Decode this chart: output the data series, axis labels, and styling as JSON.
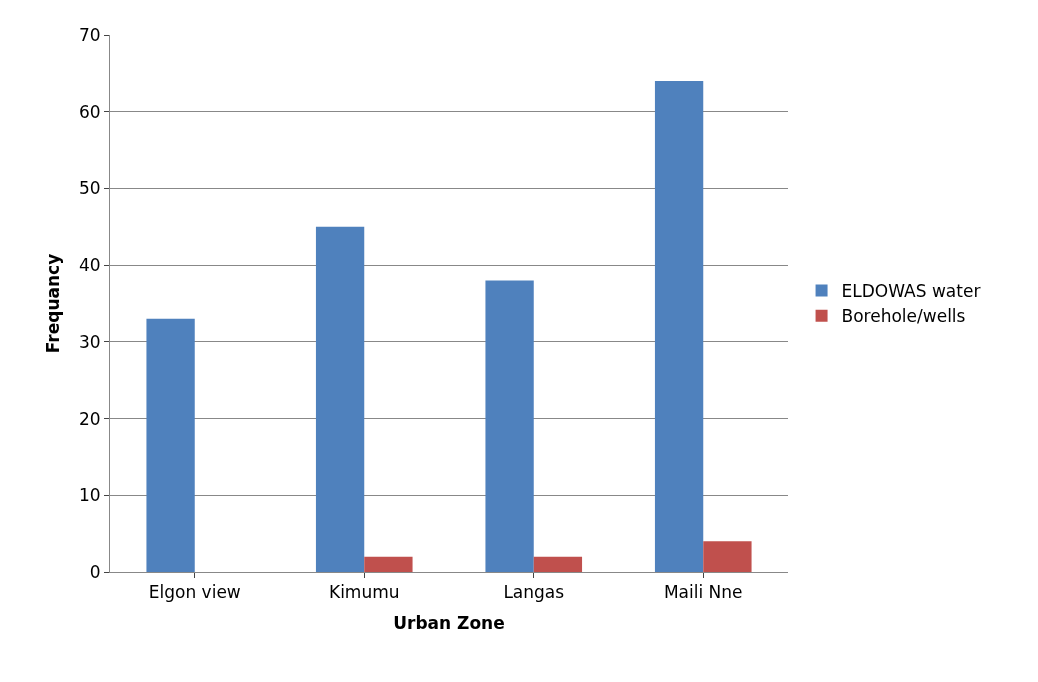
{
  "chart_data": {
    "type": "bar",
    "xlabel": "Urban Zone",
    "ylabel": "Frequancy",
    "categories": [
      "Elgon view",
      "Kimumu",
      "Langas",
      "Maili Nne"
    ],
    "series": [
      {
        "name": "ELDOWAS water",
        "color": "#4f81bd",
        "values": [
          33,
          45,
          38,
          64
        ]
      },
      {
        "name": "Borehole/wells",
        "color": "#c0504d",
        "values": [
          0,
          2,
          2,
          4
        ]
      }
    ],
    "ylim": [
      0,
      70
    ],
    "yticks": [
      0,
      10,
      20,
      30,
      40,
      50,
      60,
      70
    ],
    "grid": "y",
    "legend": "right"
  }
}
